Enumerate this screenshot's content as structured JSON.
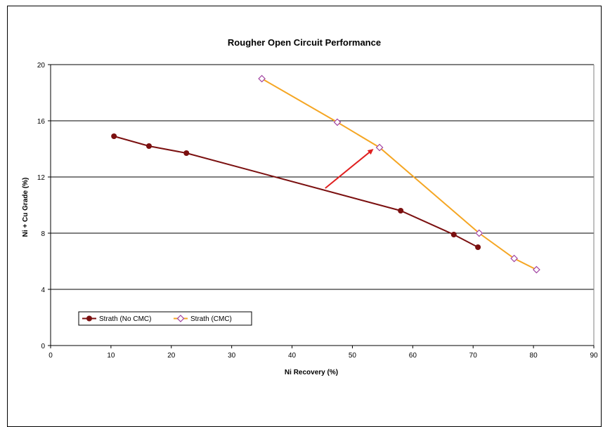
{
  "chart_data": {
    "type": "line",
    "title": "Rougher Open Circuit Performance",
    "xlabel": "Ni Recovery (%)",
    "ylabel": "Ni + Cu Grade (%)",
    "xlim": [
      0,
      90
    ],
    "ylim": [
      0,
      20
    ],
    "xticks": [
      0,
      10,
      20,
      30,
      40,
      50,
      60,
      70,
      80,
      90
    ],
    "yticks": [
      0,
      4,
      8,
      12,
      16,
      20
    ],
    "grid": "horizontal",
    "legend_placement": "bottom-left",
    "series": [
      {
        "name": "Strath  (No CMC)",
        "color": "#7b1010",
        "marker": "circle",
        "points": [
          [
            10.5,
            14.9
          ],
          [
            16.3,
            14.2
          ],
          [
            22.5,
            13.7
          ],
          [
            58.0,
            9.6
          ],
          [
            66.8,
            7.9
          ],
          [
            70.8,
            7.0
          ]
        ]
      },
      {
        "name": "Strath  (CMC)",
        "color": "#f5a623",
        "marker": "diamond",
        "marker_color": "#a040a0",
        "points": [
          [
            35.0,
            19.0
          ],
          [
            47.5,
            15.9
          ],
          [
            54.5,
            14.1
          ],
          [
            71.0,
            8.0
          ],
          [
            76.8,
            6.2
          ],
          [
            80.5,
            5.4
          ]
        ]
      }
    ],
    "annotations": [
      {
        "type": "arrow",
        "color": "#e02020",
        "from": [
          45.5,
          11.2
        ],
        "to": [
          53.5,
          14.0
        ]
      }
    ]
  }
}
